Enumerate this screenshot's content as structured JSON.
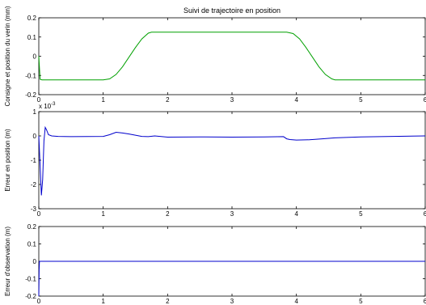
{
  "chart_data": [
    {
      "type": "line",
      "title": "Suivi de trajectoire en position",
      "xlabel": "",
      "ylabel": "Consigne et position du verin (mm)",
      "xlim": [
        0,
        6
      ],
      "ylim": [
        -0.2,
        0.2
      ],
      "xticks": [
        "0",
        "1",
        "2",
        "3",
        "4",
        "5",
        "6"
      ],
      "yticks": [
        "-0.2",
        "-0.1",
        "0",
        "0.1",
        "0.2"
      ],
      "grid": false,
      "series": [
        {
          "color": "#00a000",
          "x": [
            0,
            0.005,
            0.02,
            0.05,
            1.0,
            1.1,
            1.2,
            1.3,
            1.4,
            1.5,
            1.6,
            1.7,
            1.75,
            2.0,
            3.0,
            3.85,
            3.95,
            4.05,
            4.15,
            4.25,
            4.35,
            4.45,
            4.55,
            4.6,
            5.0,
            6.0
          ],
          "values": [
            0.0,
            -0.03,
            -0.12,
            -0.123,
            -0.123,
            -0.118,
            -0.095,
            -0.055,
            -0.005,
            0.045,
            0.09,
            0.12,
            0.125,
            0.125,
            0.125,
            0.125,
            0.118,
            0.09,
            0.045,
            -0.005,
            -0.055,
            -0.095,
            -0.118,
            -0.123,
            -0.123,
            -0.123
          ]
        }
      ]
    },
    {
      "type": "line",
      "title": "",
      "xlabel": "",
      "ylabel": "Erreur en position (m)",
      "scale_note": "x 10",
      "scale_exp": "-3",
      "xlim": [
        0,
        6
      ],
      "ylim": [
        -3,
        1
      ],
      "xticks": [
        "0",
        "1",
        "2",
        "3",
        "4",
        "5",
        "6"
      ],
      "yticks": [
        "-3",
        "-2",
        "-1",
        "0",
        "1"
      ],
      "grid": false,
      "series": [
        {
          "color": "#0000cc",
          "x": [
            0,
            0.02,
            0.04,
            0.06,
            0.08,
            0.1,
            0.12,
            0.15,
            0.2,
            0.3,
            0.5,
            1.0,
            1.1,
            1.2,
            1.3,
            1.4,
            1.6,
            1.7,
            1.8,
            2.0,
            2.5,
            3.0,
            3.5,
            3.8,
            3.85,
            3.9,
            4.0,
            4.2,
            4.4,
            4.6,
            5.0,
            5.5,
            6.0
          ],
          "values": [
            0,
            -1.2,
            -2.45,
            -1.8,
            -0.2,
            0.35,
            0.25,
            0.05,
            0.0,
            -0.02,
            -0.03,
            -0.02,
            0.05,
            0.15,
            0.12,
            0.08,
            -0.02,
            -0.03,
            0.0,
            -0.05,
            -0.04,
            -0.05,
            -0.04,
            -0.03,
            -0.12,
            -0.15,
            -0.17,
            -0.16,
            -0.12,
            -0.08,
            -0.04,
            -0.02,
            0.0
          ]
        }
      ]
    },
    {
      "type": "line",
      "title": "",
      "xlabel": "Temps (s)",
      "ylabel": "Erreur d'observation (m)",
      "xlim": [
        0,
        6
      ],
      "ylim": [
        -0.2,
        0.2
      ],
      "xticks": [
        "0",
        "1",
        "2",
        "3",
        "4",
        "5",
        "6"
      ],
      "yticks": [
        "-0.2",
        "-0.1",
        "0",
        "0.1",
        "0.2"
      ],
      "grid": false,
      "series": [
        {
          "color": "#0000cc",
          "x": [
            0,
            0.005,
            0.01,
            0.02,
            6.0
          ],
          "values": [
            -0.2,
            -0.05,
            0.0,
            0.0,
            0.0
          ]
        }
      ]
    }
  ]
}
